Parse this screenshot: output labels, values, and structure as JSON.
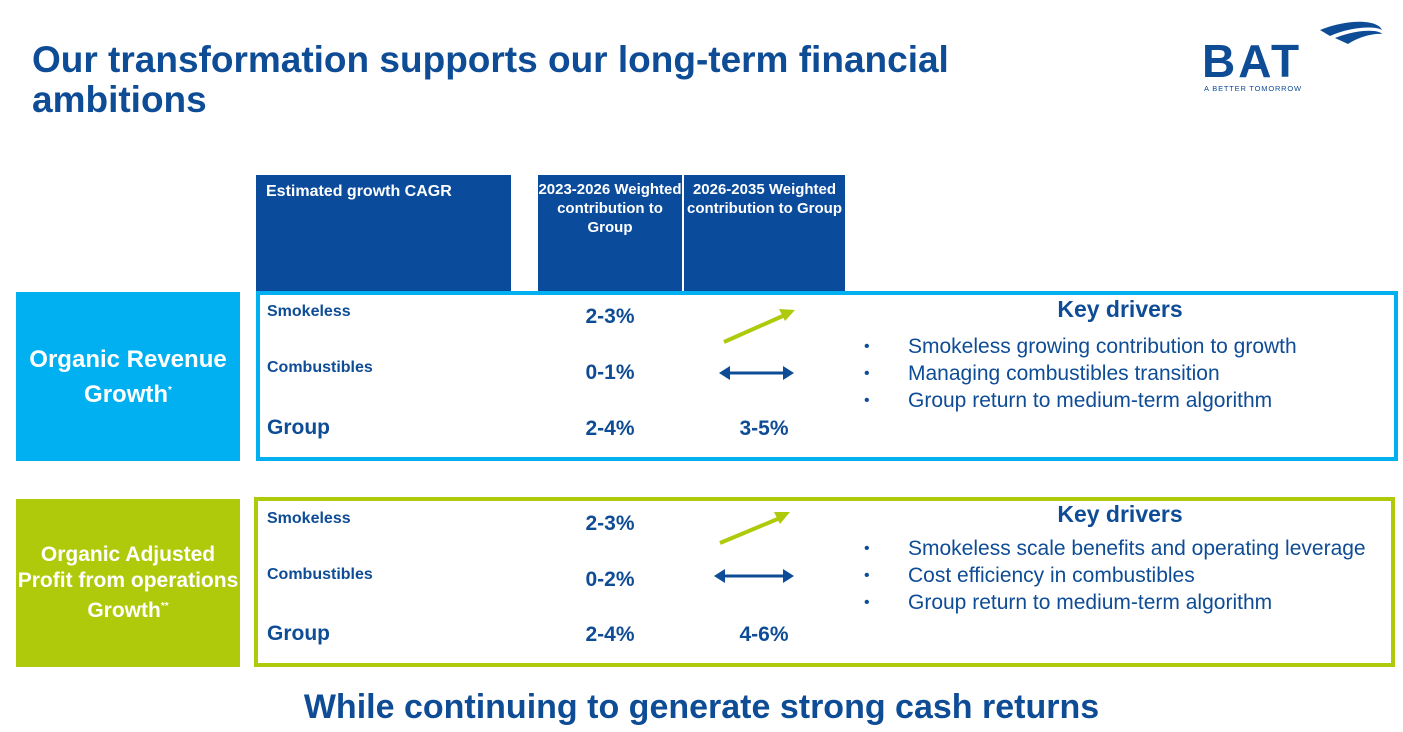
{
  "title": "Our transformation supports our long-term financial ambitions",
  "logo": {
    "wordmark": "BAT",
    "tagline": "A BETTER TOMORROW"
  },
  "headers": {
    "cagr": "Estimated growth CAGR",
    "period1": "2023-2026 Weighted contribution to Group",
    "period2": "2026-2035 Weighted contribution to Group"
  },
  "revenue": {
    "label": "Organic Revenue Growth",
    "footnote_mark": "*",
    "rows": [
      {
        "name": "Smokeless",
        "value": "2-3%",
        "trend_icon": "up-arrow-icon",
        "trend_color": "#AFCA0B"
      },
      {
        "name": "Combustibles",
        "value": "0-1%",
        "trend_icon": "double-arrow-icon",
        "trend_color": "#0E4C96"
      },
      {
        "name": "Group",
        "value": "2-4%",
        "value2": "3-5%"
      }
    ],
    "drivers_title": "Key drivers",
    "drivers": [
      "Smokeless growing contribution to growth",
      "Managing combustibles transition",
      "Group return to medium-term algorithm"
    ]
  },
  "profit": {
    "label": "Organic Adjusted Profit from operations Growth",
    "footnote_mark": "**",
    "rows": [
      {
        "name": "Smokeless",
        "value": "2-3%",
        "trend_icon": "up-arrow-icon",
        "trend_color": "#AFCA0B"
      },
      {
        "name": "Combustibles",
        "value": "0-2%",
        "trend_icon": "double-arrow-icon",
        "trend_color": "#0E4C96"
      },
      {
        "name": "Group",
        "value": "2-4%",
        "value2": "4-6%"
      }
    ],
    "drivers_title": "Key drivers",
    "drivers": [
      "Smokeless scale benefits and operating leverage",
      "Cost efficiency in combustibles",
      "Group return to medium-term algorithm"
    ]
  },
  "footer": "While continuing to generate strong cash returns",
  "colors": {
    "navy": "#0E4C96",
    "header_blue": "#0A4B9C",
    "cyan": "#00B0F0",
    "lime": "#AFCA0B"
  }
}
